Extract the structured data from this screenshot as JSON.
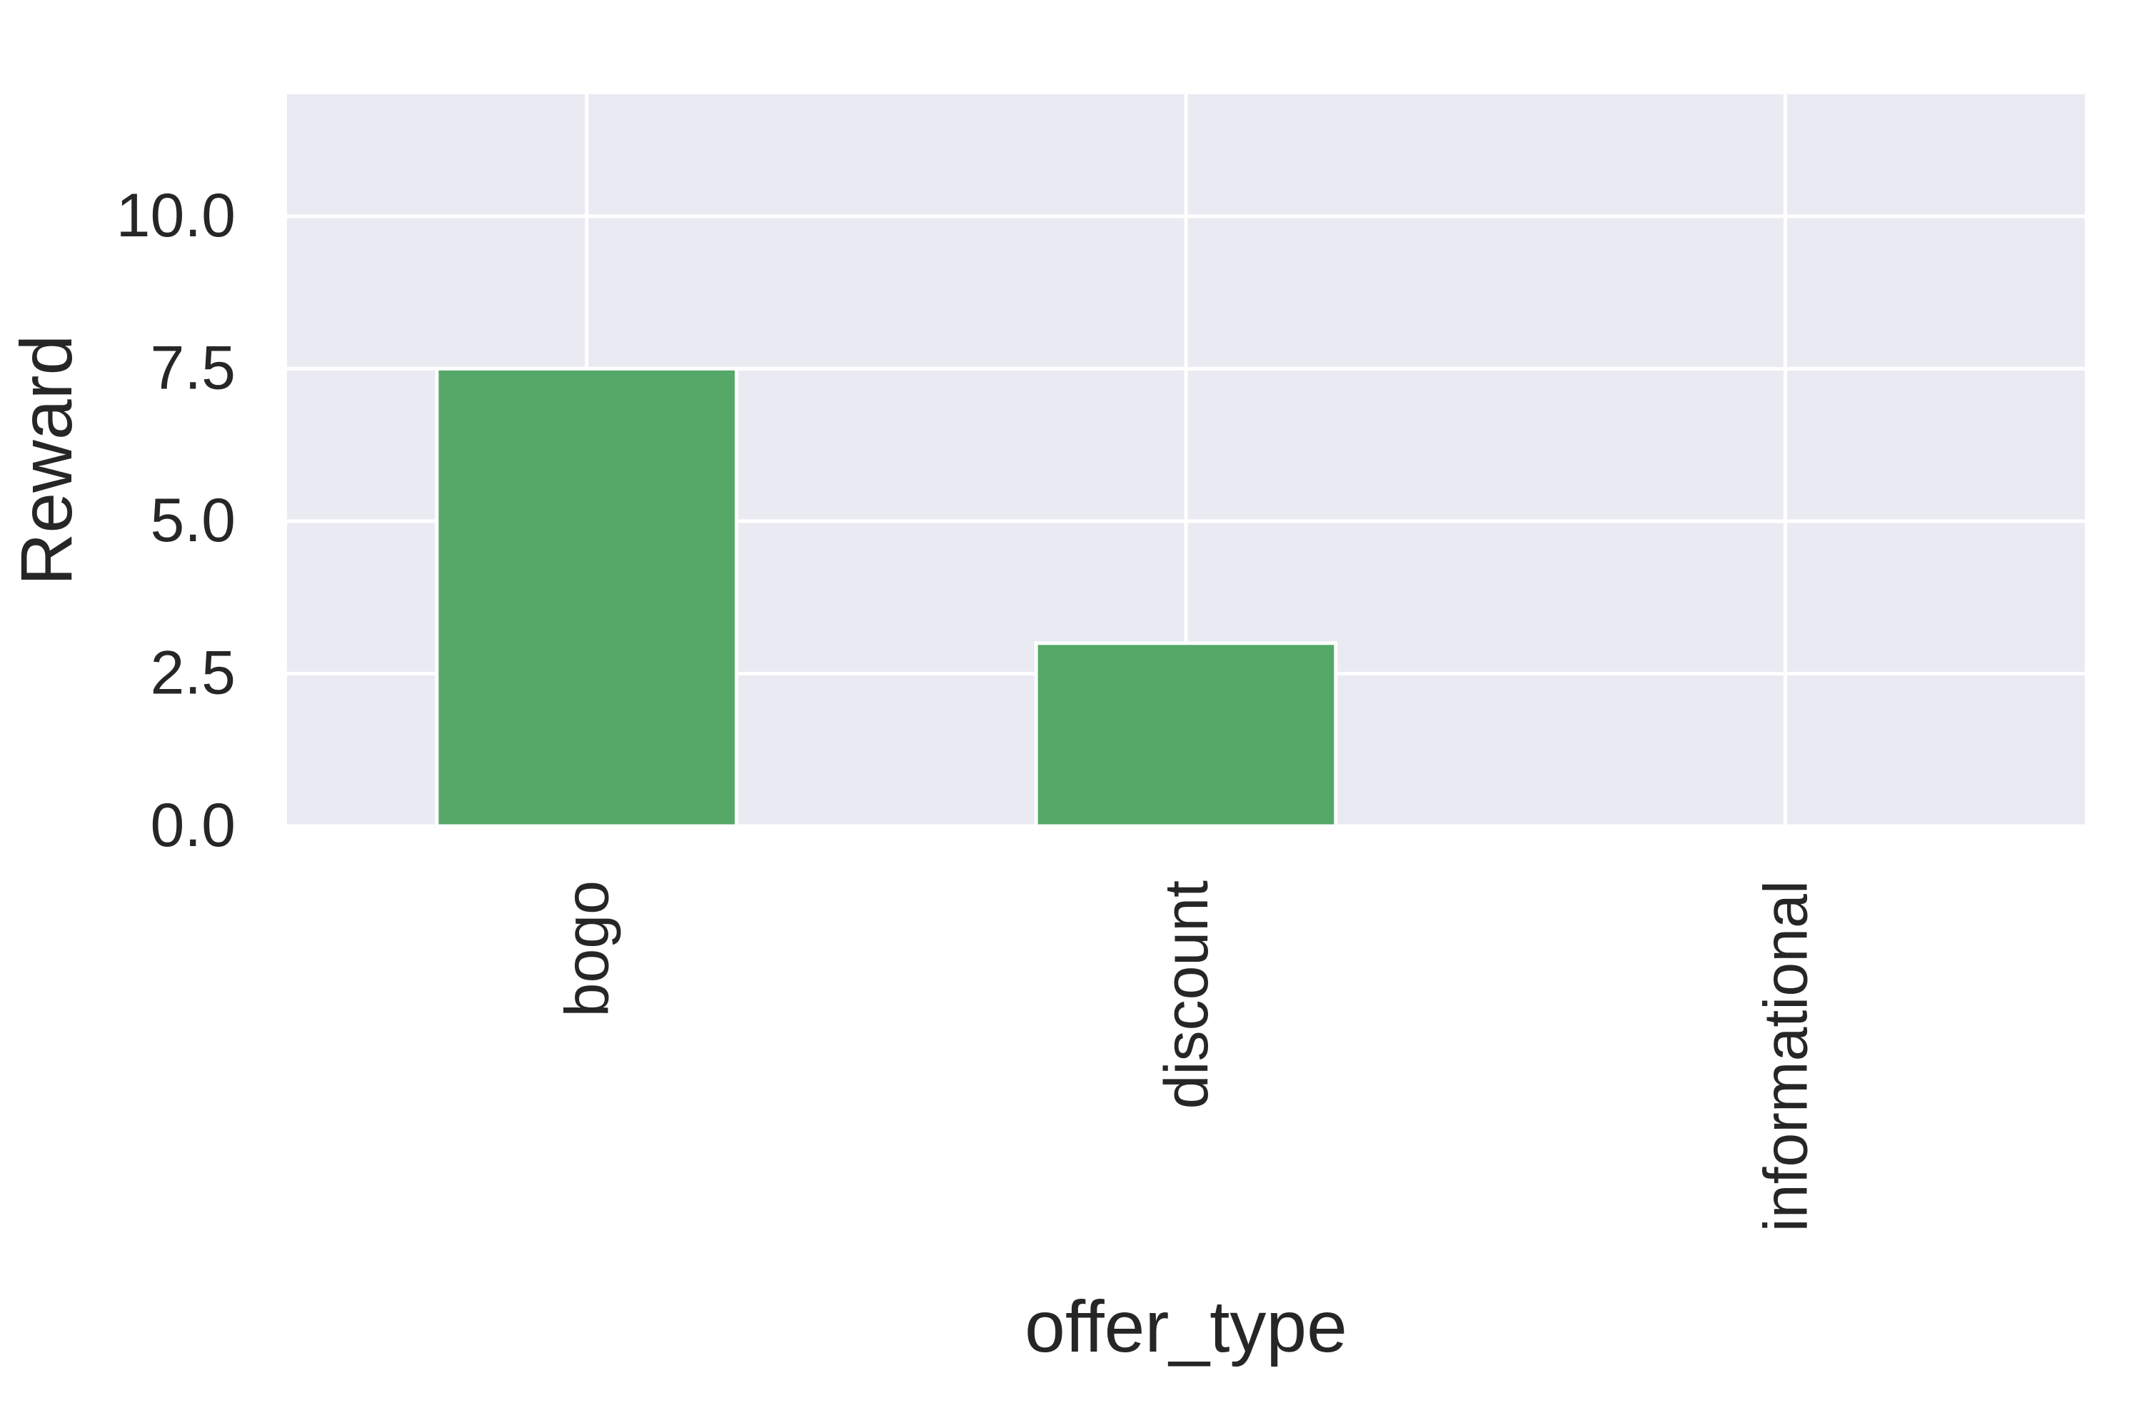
{
  "chart_data": {
    "type": "bar",
    "title": "",
    "xlabel": "offer_type",
    "ylabel": "Reward",
    "categories": [
      "bogo",
      "discount",
      "informational"
    ],
    "values": [
      7.5,
      3.0,
      0.0
    ],
    "ylim": [
      0,
      12
    ],
    "yticks": [
      0.0,
      2.5,
      5.0,
      7.5,
      10.0
    ],
    "ytick_labels": [
      "0.0",
      "2.5",
      "5.0",
      "7.5",
      "10.0"
    ],
    "grid": true,
    "legend": "none",
    "colors": {
      "bar": "#55a868",
      "plot_background": "#eaeaf2",
      "grid": "#ffffff",
      "text": "#262626"
    }
  }
}
